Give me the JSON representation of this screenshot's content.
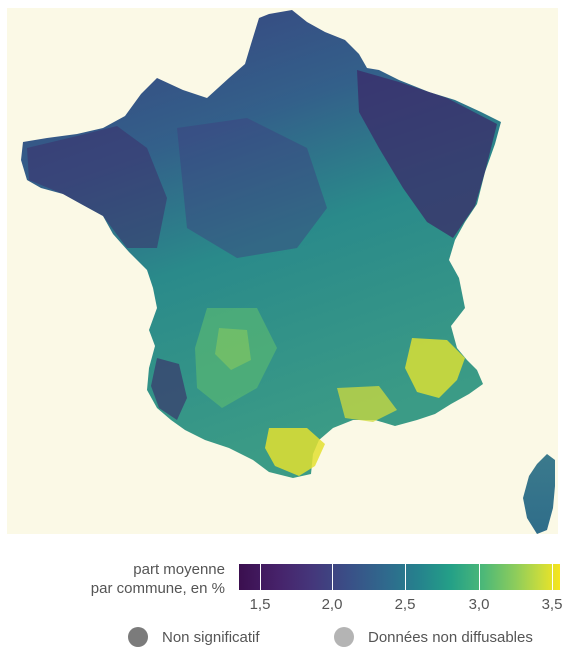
{
  "legend": {
    "title_line1": "part moyenne",
    "title_line2": "par commune, en %",
    "ticks": [
      "1,5",
      "2,0",
      "2,5",
      "3,0",
      "3,5"
    ],
    "non_significatif": "Non significatif",
    "non_diffusables": "Données non diffusables"
  },
  "colors": {
    "scale_low": "#3b0f4f",
    "scale_mid": "#25828d",
    "scale_high": "#f7e51c",
    "non_significatif": "#7b7b7b",
    "non_diffusables": "#b4b4b4",
    "background": "#fbf9e6"
  },
  "chart_data": {
    "type": "choropleth",
    "legend_title": "part moyenne par commune, en %",
    "scale": [
      1.5,
      2.0,
      2.5,
      3.0,
      3.5
    ],
    "scale_range": [
      1.5,
      3.5
    ],
    "categories": [
      "Non significatif",
      "Données non diffusables"
    ]
  }
}
